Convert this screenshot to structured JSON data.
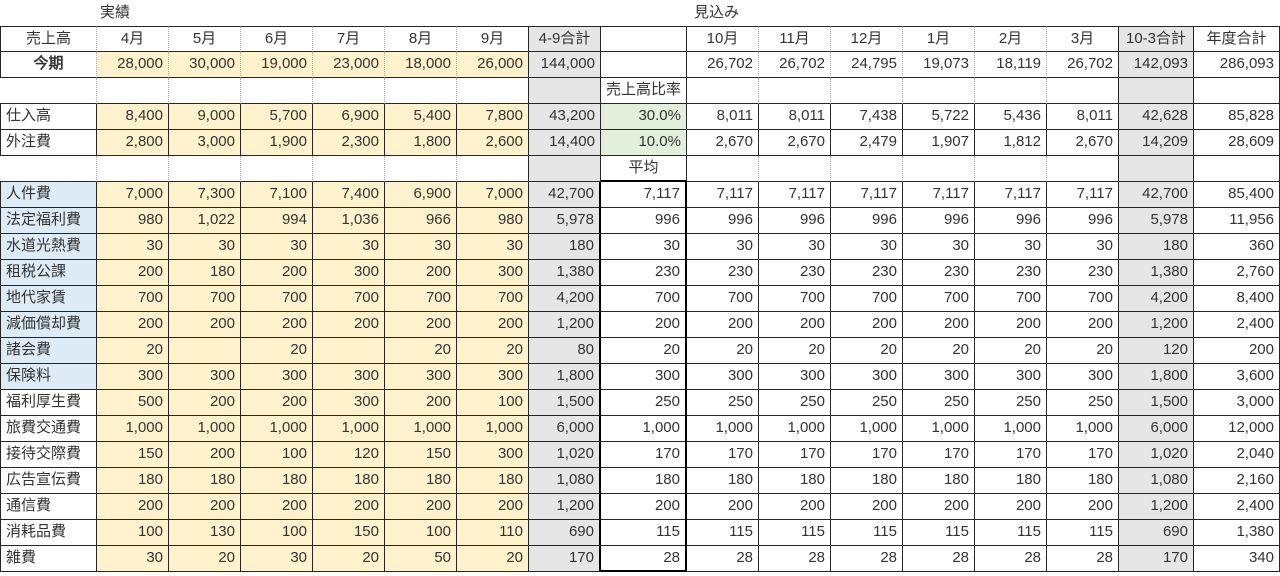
{
  "section_labels": {
    "actual": "実績",
    "forecast": "見込み"
  },
  "table": {
    "header": [
      "売上高",
      "4月",
      "5月",
      "6月",
      "7月",
      "8月",
      "9月",
      "4-9合計",
      "",
      "10月",
      "11月",
      "12月",
      "1月",
      "2月",
      "3月",
      "10-3合計",
      "年度合計"
    ],
    "ratio_section_label": "売上高比率",
    "average_section_label": "平均",
    "current_period": {
      "label": "今期",
      "actual": [
        "28,000",
        "30,000",
        "19,000",
        "23,000",
        "18,000",
        "26,000"
      ],
      "actual_total": "144,000",
      "mid": "",
      "forecast": [
        "26,702",
        "26,702",
        "24,795",
        "19,073",
        "18,119",
        "26,702"
      ],
      "forecast_total": "142,093",
      "year_total": "286,093"
    },
    "cost_rows": [
      {
        "label": "仕入高",
        "actual": [
          "8,400",
          "9,000",
          "5,700",
          "6,900",
          "5,400",
          "7,800"
        ],
        "actual_total": "43,200",
        "mid": "30.0%",
        "forecast": [
          "8,011",
          "8,011",
          "7,438",
          "5,722",
          "5,436",
          "8,011"
        ],
        "forecast_total": "42,628",
        "year_total": "85,828"
      },
      {
        "label": "外注費",
        "actual": [
          "2,800",
          "3,000",
          "1,900",
          "2,300",
          "1,800",
          "2,600"
        ],
        "actual_total": "14,400",
        "mid": "10.0%",
        "forecast": [
          "2,670",
          "2,670",
          "2,479",
          "1,907",
          "1,812",
          "2,670"
        ],
        "forecast_total": "14,209",
        "year_total": "28,609"
      }
    ],
    "expense_rows": [
      {
        "label": "人件費",
        "label_highlighted": true,
        "actual": [
          "7,000",
          "7,300",
          "7,100",
          "7,400",
          "6,900",
          "7,000"
        ],
        "actual_total": "42,700",
        "mid": "7,117",
        "forecast": [
          "7,117",
          "7,117",
          "7,117",
          "7,117",
          "7,117",
          "7,117"
        ],
        "forecast_total": "42,700",
        "year_total": "85,400"
      },
      {
        "label": "法定福利費",
        "label_highlighted": true,
        "actual": [
          "980",
          "1,022",
          "994",
          "1,036",
          "966",
          "980"
        ],
        "actual_total": "5,978",
        "mid": "996",
        "forecast": [
          "996",
          "996",
          "996",
          "996",
          "996",
          "996"
        ],
        "forecast_total": "5,978",
        "year_total": "11,956"
      },
      {
        "label": "水道光熱費",
        "label_highlighted": true,
        "actual": [
          "30",
          "30",
          "30",
          "30",
          "30",
          "30"
        ],
        "actual_total": "180",
        "mid": "30",
        "forecast": [
          "30",
          "30",
          "30",
          "30",
          "30",
          "30"
        ],
        "forecast_total": "180",
        "year_total": "360"
      },
      {
        "label": "租税公課",
        "label_highlighted": true,
        "actual": [
          "200",
          "180",
          "200",
          "300",
          "200",
          "300"
        ],
        "actual_total": "1,380",
        "mid": "230",
        "forecast": [
          "230",
          "230",
          "230",
          "230",
          "230",
          "230"
        ],
        "forecast_total": "1,380",
        "year_total": "2,760"
      },
      {
        "label": "地代家賃",
        "label_highlighted": true,
        "actual": [
          "700",
          "700",
          "700",
          "700",
          "700",
          "700"
        ],
        "actual_total": "4,200",
        "mid": "700",
        "forecast": [
          "700",
          "700",
          "700",
          "700",
          "700",
          "700"
        ],
        "forecast_total": "4,200",
        "year_total": "8,400"
      },
      {
        "label": "減価償却費",
        "label_highlighted": true,
        "actual": [
          "200",
          "200",
          "200",
          "200",
          "200",
          "200"
        ],
        "actual_total": "1,200",
        "mid": "200",
        "forecast": [
          "200",
          "200",
          "200",
          "200",
          "200",
          "200"
        ],
        "forecast_total": "1,200",
        "year_total": "2,400"
      },
      {
        "label": "諸会費",
        "label_highlighted": true,
        "actual": [
          "20",
          "",
          "20",
          "",
          "20",
          "20"
        ],
        "actual_total": "80",
        "mid": "20",
        "forecast": [
          "20",
          "20",
          "20",
          "20",
          "20",
          "20"
        ],
        "forecast_total": "120",
        "year_total": "200"
      },
      {
        "label": "保険料",
        "label_highlighted": true,
        "actual": [
          "300",
          "300",
          "300",
          "300",
          "300",
          "300"
        ],
        "actual_total": "1,800",
        "mid": "300",
        "forecast": [
          "300",
          "300",
          "300",
          "300",
          "300",
          "300"
        ],
        "forecast_total": "1,800",
        "year_total": "3,600"
      },
      {
        "label": "福利厚生費",
        "label_highlighted": false,
        "actual": [
          "500",
          "200",
          "200",
          "300",
          "200",
          "100"
        ],
        "actual_total": "1,500",
        "mid": "250",
        "forecast": [
          "250",
          "250",
          "250",
          "250",
          "250",
          "250"
        ],
        "forecast_total": "1,500",
        "year_total": "3,000"
      },
      {
        "label": "旅費交通費",
        "label_highlighted": false,
        "actual": [
          "1,000",
          "1,000",
          "1,000",
          "1,000",
          "1,000",
          "1,000"
        ],
        "actual_total": "6,000",
        "mid": "1,000",
        "forecast": [
          "1,000",
          "1,000",
          "1,000",
          "1,000",
          "1,000",
          "1,000"
        ],
        "forecast_total": "6,000",
        "year_total": "12,000"
      },
      {
        "label": "接待交際費",
        "label_highlighted": false,
        "actual": [
          "150",
          "200",
          "100",
          "120",
          "150",
          "300"
        ],
        "actual_total": "1,020",
        "mid": "170",
        "forecast": [
          "170",
          "170",
          "170",
          "170",
          "170",
          "170"
        ],
        "forecast_total": "1,020",
        "year_total": "2,040"
      },
      {
        "label": "広告宣伝費",
        "label_highlighted": false,
        "actual": [
          "180",
          "180",
          "180",
          "180",
          "180",
          "180"
        ],
        "actual_total": "1,080",
        "mid": "180",
        "forecast": [
          "180",
          "180",
          "180",
          "180",
          "180",
          "180"
        ],
        "forecast_total": "1,080",
        "year_total": "2,160"
      },
      {
        "label": "通信費",
        "label_highlighted": false,
        "actual": [
          "200",
          "200",
          "200",
          "200",
          "200",
          "200"
        ],
        "actual_total": "1,200",
        "mid": "200",
        "forecast": [
          "200",
          "200",
          "200",
          "200",
          "200",
          "200"
        ],
        "forecast_total": "1,200",
        "year_total": "2,400"
      },
      {
        "label": "消耗品費",
        "label_highlighted": false,
        "actual": [
          "100",
          "130",
          "100",
          "150",
          "100",
          "110"
        ],
        "actual_total": "690",
        "mid": "115",
        "forecast": [
          "115",
          "115",
          "115",
          "115",
          "115",
          "115"
        ],
        "forecast_total": "690",
        "year_total": "1,380"
      },
      {
        "label": "雑費",
        "label_highlighted": false,
        "actual": [
          "30",
          "20",
          "30",
          "20",
          "50",
          "20"
        ],
        "actual_total": "170",
        "mid": "28",
        "forecast": [
          "28",
          "28",
          "28",
          "28",
          "28",
          "28"
        ],
        "forecast_total": "170",
        "year_total": "340"
      }
    ]
  },
  "colors": {
    "actual_fill": "#FFF2CC",
    "label_fill": "#DDEBF7",
    "ratio_fill": "#E2EFDA",
    "total_fill": "#E7E6E6",
    "grid_solid": "#262626",
    "grid_dotted": "#ABABAB",
    "text": "#333333"
  }
}
